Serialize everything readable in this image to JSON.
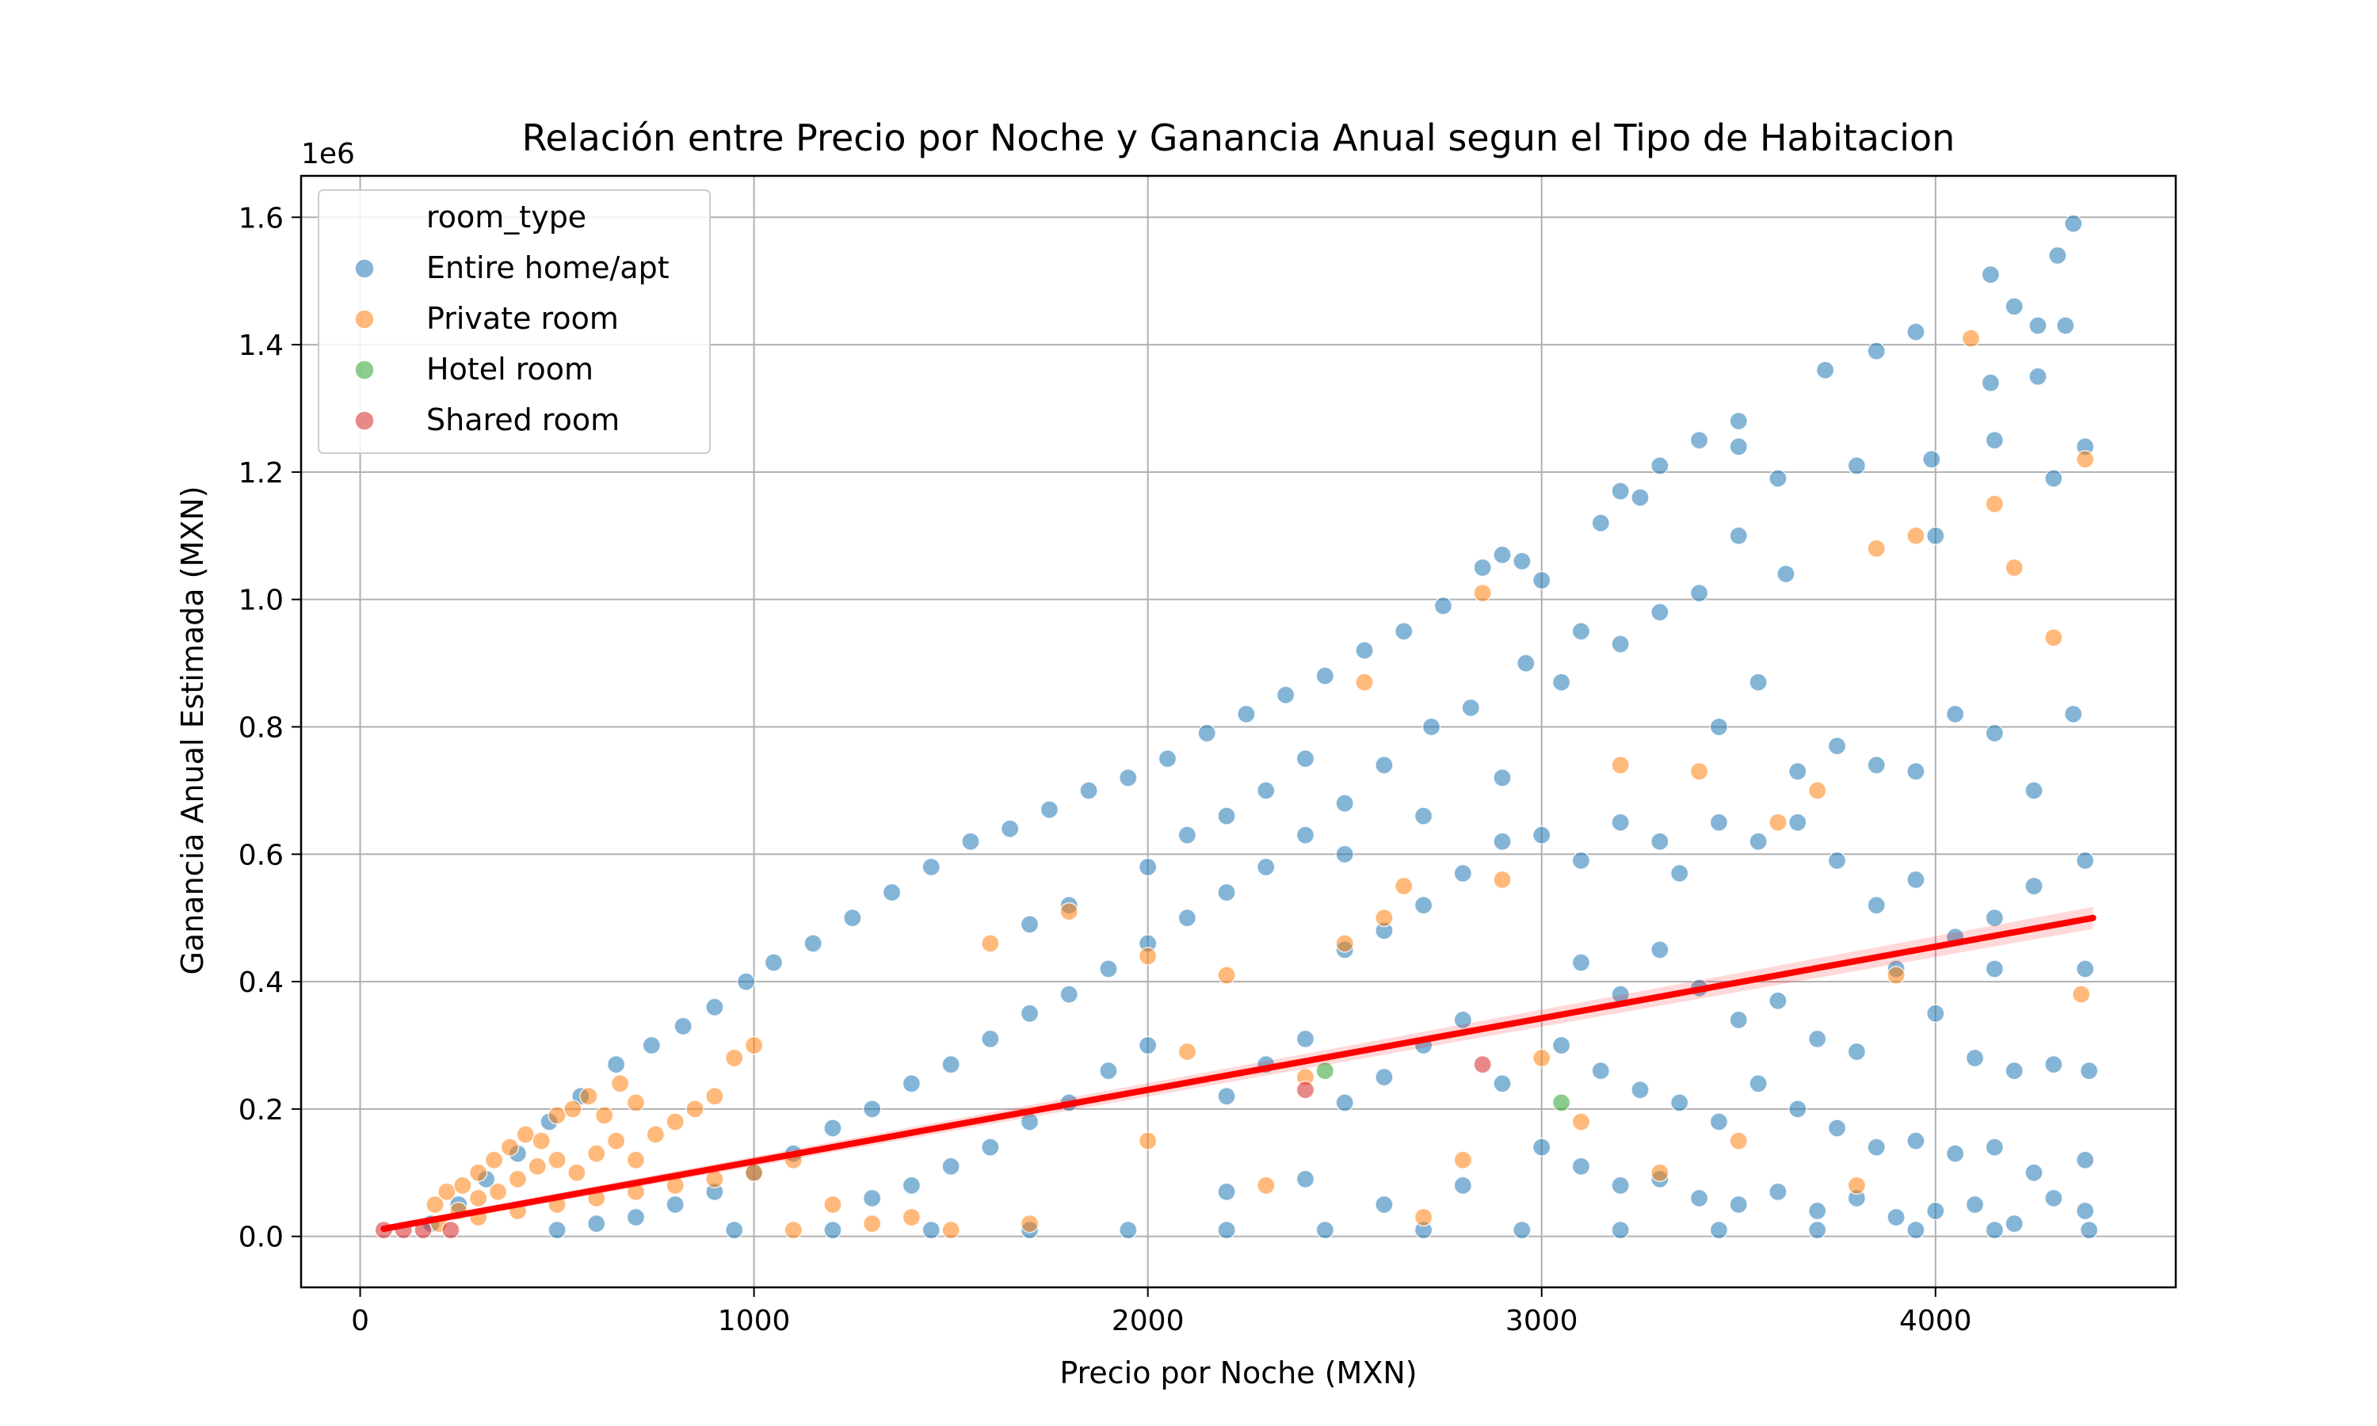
{
  "chart_data": {
    "type": "scatter",
    "title": "Relación entre Precio por Noche y Ganancia Anual segun el Tipo de Habitacion",
    "xlabel": "Precio por Noche (MXN)",
    "ylabel": "Ganancia Anual Estimada (MXN)",
    "y_offset_text": "1e6",
    "xlim": [
      -150,
      4610
    ],
    "ylim": [
      -0.08,
      1.665
    ],
    "x_ticks": [
      0,
      1000,
      2000,
      3000,
      4000
    ],
    "x_tick_labels": [
      "0",
      "1000",
      "2000",
      "3000",
      "4000"
    ],
    "y_ticks": [
      0.0,
      0.2,
      0.4,
      0.6,
      0.8,
      1.0,
      1.2,
      1.4,
      1.6
    ],
    "y_tick_labels": [
      "0.0",
      "0.2",
      "0.4",
      "0.6",
      "0.8",
      "1.0",
      "1.2",
      "1.4",
      "1.6"
    ],
    "grid": true,
    "legend": {
      "title": "room_type",
      "placement": "top-left"
    },
    "series": [
      {
        "name": "Entire home/apt",
        "color": "#1f77b4",
        "points": [
          [
            180,
            0.02
          ],
          [
            250,
            0.05
          ],
          [
            320,
            0.09
          ],
          [
            400,
            0.13
          ],
          [
            480,
            0.18
          ],
          [
            560,
            0.22
          ],
          [
            650,
            0.27
          ],
          [
            740,
            0.3
          ],
          [
            820,
            0.33
          ],
          [
            900,
            0.36
          ],
          [
            980,
            0.4
          ],
          [
            1050,
            0.43
          ],
          [
            1150,
            0.46
          ],
          [
            1250,
            0.5
          ],
          [
            1350,
            0.54
          ],
          [
            1450,
            0.58
          ],
          [
            1550,
            0.62
          ],
          [
            1650,
            0.64
          ],
          [
            1750,
            0.67
          ],
          [
            1850,
            0.7
          ],
          [
            1950,
            0.72
          ],
          [
            2050,
            0.75
          ],
          [
            2150,
            0.79
          ],
          [
            2250,
            0.82
          ],
          [
            2350,
            0.85
          ],
          [
            2450,
            0.88
          ],
          [
            2550,
            0.92
          ],
          [
            2650,
            0.95
          ],
          [
            2750,
            0.99
          ],
          [
            2850,
            1.05
          ],
          [
            2900,
            1.07
          ],
          [
            2950,
            1.06
          ],
          [
            3000,
            1.03
          ],
          [
            3150,
            1.12
          ],
          [
            3200,
            1.17
          ],
          [
            3250,
            1.16
          ],
          [
            3300,
            1.21
          ],
          [
            3400,
            1.25
          ],
          [
            3500,
            1.28
          ],
          [
            3500,
            1.24
          ],
          [
            3600,
            1.19
          ],
          [
            3720,
            1.36
          ],
          [
            3800,
            1.21
          ],
          [
            3850,
            1.39
          ],
          [
            3950,
            1.42
          ],
          [
            3990,
            1.22
          ],
          [
            4140,
            1.51
          ],
          [
            4200,
            1.46
          ],
          [
            4260,
            1.43
          ],
          [
            4310,
            1.54
          ],
          [
            4330,
            1.43
          ],
          [
            4350,
            1.59
          ],
          [
            4140,
            1.34
          ],
          [
            4260,
            1.35
          ],
          [
            4380,
            1.24
          ],
          [
            4150,
            1.25
          ],
          [
            4300,
            1.19
          ],
          [
            4000,
            1.1
          ],
          [
            3500,
            1.1
          ],
          [
            3620,
            1.04
          ],
          [
            3400,
            1.01
          ],
          [
            3300,
            0.98
          ],
          [
            3200,
            0.93
          ],
          [
            3100,
            0.95
          ],
          [
            3050,
            0.87
          ],
          [
            2960,
            0.9
          ],
          [
            2820,
            0.83
          ],
          [
            2720,
            0.8
          ],
          [
            2600,
            0.74
          ],
          [
            2500,
            0.68
          ],
          [
            2400,
            0.63
          ],
          [
            2300,
            0.58
          ],
          [
            2200,
            0.54
          ],
          [
            2100,
            0.5
          ],
          [
            2000,
            0.46
          ],
          [
            1900,
            0.42
          ],
          [
            1800,
            0.38
          ],
          [
            1700,
            0.35
          ],
          [
            1600,
            0.31
          ],
          [
            1500,
            0.27
          ],
          [
            1400,
            0.24
          ],
          [
            1300,
            0.2
          ],
          [
            1200,
            0.17
          ],
          [
            1100,
            0.13
          ],
          [
            1000,
            0.1
          ],
          [
            900,
            0.07
          ],
          [
            800,
            0.05
          ],
          [
            700,
            0.03
          ],
          [
            600,
            0.02
          ],
          [
            500,
            0.01
          ],
          [
            3450,
            0.8
          ],
          [
            3550,
            0.87
          ],
          [
            3650,
            0.73
          ],
          [
            3750,
            0.77
          ],
          [
            3850,
            0.74
          ],
          [
            3950,
            0.73
          ],
          [
            4050,
            0.82
          ],
          [
            4150,
            0.79
          ],
          [
            4250,
            0.7
          ],
          [
            4350,
            0.82
          ],
          [
            3450,
            0.65
          ],
          [
            3550,
            0.62
          ],
          [
            3650,
            0.65
          ],
          [
            3750,
            0.59
          ],
          [
            3850,
            0.52
          ],
          [
            3950,
            0.56
          ],
          [
            4050,
            0.47
          ],
          [
            4150,
            0.5
          ],
          [
            4250,
            0.55
          ],
          [
            4380,
            0.59
          ],
          [
            3100,
            0.59
          ],
          [
            3200,
            0.65
          ],
          [
            3300,
            0.62
          ],
          [
            3350,
            0.57
          ],
          [
            3000,
            0.63
          ],
          [
            2900,
            0.62
          ],
          [
            2800,
            0.57
          ],
          [
            2700,
            0.52
          ],
          [
            2600,
            0.48
          ],
          [
            2500,
            0.45
          ],
          [
            3100,
            0.43
          ],
          [
            3200,
            0.38
          ],
          [
            3300,
            0.45
          ],
          [
            3400,
            0.39
          ],
          [
            3500,
            0.34
          ],
          [
            3600,
            0.37
          ],
          [
            3700,
            0.31
          ],
          [
            3800,
            0.29
          ],
          [
            3900,
            0.42
          ],
          [
            4000,
            0.35
          ],
          [
            4100,
            0.28
          ],
          [
            4200,
            0.26
          ],
          [
            4300,
            0.27
          ],
          [
            4390,
            0.26
          ],
          [
            4380,
            0.42
          ],
          [
            4150,
            0.42
          ],
          [
            3050,
            0.3
          ],
          [
            3150,
            0.26
          ],
          [
            3250,
            0.23
          ],
          [
            3350,
            0.21
          ],
          [
            3450,
            0.18
          ],
          [
            3550,
            0.24
          ],
          [
            3650,
            0.2
          ],
          [
            3750,
            0.17
          ],
          [
            3850,
            0.14
          ],
          [
            3950,
            0.15
          ],
          [
            4050,
            0.13
          ],
          [
            4150,
            0.14
          ],
          [
            4250,
            0.1
          ],
          [
            4380,
            0.12
          ],
          [
            3000,
            0.14
          ],
          [
            3100,
            0.11
          ],
          [
            3200,
            0.08
          ],
          [
            3300,
            0.09
          ],
          [
            3400,
            0.06
          ],
          [
            3500,
            0.05
          ],
          [
            3600,
            0.07
          ],
          [
            3700,
            0.04
          ],
          [
            3800,
            0.06
          ],
          [
            3900,
            0.03
          ],
          [
            4000,
            0.04
          ],
          [
            4100,
            0.05
          ],
          [
            4200,
            0.02
          ],
          [
            4300,
            0.06
          ],
          [
            4380,
            0.04
          ],
          [
            4390,
            0.01
          ],
          [
            4150,
            0.01
          ],
          [
            3950,
            0.01
          ],
          [
            3700,
            0.01
          ],
          [
            3450,
            0.01
          ],
          [
            3200,
            0.01
          ],
          [
            2950,
            0.01
          ],
          [
            2700,
            0.01
          ],
          [
            2450,
            0.01
          ],
          [
            2200,
            0.01
          ],
          [
            1950,
            0.01
          ],
          [
            1700,
            0.01
          ],
          [
            1450,
            0.01
          ],
          [
            1200,
            0.01
          ],
          [
            950,
            0.01
          ],
          [
            2200,
            0.22
          ],
          [
            2300,
            0.27
          ],
          [
            2400,
            0.31
          ],
          [
            2500,
            0.21
          ],
          [
            2600,
            0.25
          ],
          [
            2700,
            0.3
          ],
          [
            2800,
            0.34
          ],
          [
            2900,
            0.24
          ],
          [
            2000,
            0.3
          ],
          [
            1900,
            0.26
          ],
          [
            1800,
            0.21
          ],
          [
            1700,
            0.18
          ],
          [
            1600,
            0.14
          ],
          [
            1500,
            0.11
          ],
          [
            1400,
            0.08
          ],
          [
            1300,
            0.06
          ],
          [
            2200,
            0.07
          ],
          [
            2400,
            0.09
          ],
          [
            2600,
            0.05
          ],
          [
            2800,
            0.08
          ],
          [
            2100,
            0.63
          ],
          [
            2300,
            0.7
          ],
          [
            2400,
            0.75
          ],
          [
            2200,
            0.66
          ],
          [
            2000,
            0.58
          ],
          [
            1800,
            0.52
          ],
          [
            1700,
            0.49
          ],
          [
            2500,
            0.6
          ],
          [
            2700,
            0.66
          ],
          [
            2900,
            0.72
          ]
        ]
      },
      {
        "name": "Private room",
        "color": "#ff7f0e",
        "points": [
          [
            190,
            0.05
          ],
          [
            220,
            0.07
          ],
          [
            260,
            0.08
          ],
          [
            300,
            0.1
          ],
          [
            340,
            0.12
          ],
          [
            380,
            0.14
          ],
          [
            420,
            0.16
          ],
          [
            460,
            0.15
          ],
          [
            500,
            0.19
          ],
          [
            540,
            0.2
          ],
          [
            580,
            0.22
          ],
          [
            620,
            0.19
          ],
          [
            660,
            0.24
          ],
          [
            700,
            0.21
          ],
          [
            250,
            0.04
          ],
          [
            300,
            0.06
          ],
          [
            350,
            0.07
          ],
          [
            400,
            0.09
          ],
          [
            450,
            0.11
          ],
          [
            500,
            0.12
          ],
          [
            550,
            0.1
          ],
          [
            600,
            0.13
          ],
          [
            650,
            0.15
          ],
          [
            700,
            0.12
          ],
          [
            750,
            0.16
          ],
          [
            800,
            0.18
          ],
          [
            850,
            0.2
          ],
          [
            900,
            0.22
          ],
          [
            950,
            0.28
          ],
          [
            1000,
            0.3
          ],
          [
            200,
            0.02
          ],
          [
            300,
            0.03
          ],
          [
            400,
            0.04
          ],
          [
            500,
            0.05
          ],
          [
            600,
            0.06
          ],
          [
            700,
            0.07
          ],
          [
            800,
            0.08
          ],
          [
            900,
            0.09
          ],
          [
            1000,
            0.1
          ],
          [
            1100,
            0.12
          ],
          [
            1200,
            0.05
          ],
          [
            1400,
            0.03
          ],
          [
            1600,
            0.46
          ],
          [
            1800,
            0.51
          ],
          [
            2000,
            0.44
          ],
          [
            2100,
            0.29
          ],
          [
            2200,
            0.41
          ],
          [
            2500,
            0.46
          ],
          [
            2550,
            0.87
          ],
          [
            2600,
            0.5
          ],
          [
            2650,
            0.55
          ],
          [
            2850,
            1.01
          ],
          [
            2900,
            0.56
          ],
          [
            3000,
            0.28
          ],
          [
            3200,
            0.74
          ],
          [
            3400,
            0.73
          ],
          [
            3600,
            0.65
          ],
          [
            3700,
            0.7
          ],
          [
            3850,
            1.08
          ],
          [
            3900,
            0.41
          ],
          [
            3950,
            1.1
          ],
          [
            4090,
            1.41
          ],
          [
            4150,
            1.15
          ],
          [
            4200,
            1.05
          ],
          [
            4300,
            0.94
          ],
          [
            4380,
            1.22
          ],
          [
            4370,
            0.38
          ],
          [
            3800,
            0.08
          ],
          [
            3500,
            0.15
          ],
          [
            3300,
            0.1
          ],
          [
            3100,
            0.18
          ],
          [
            2800,
            0.12
          ],
          [
            2700,
            0.03
          ],
          [
            2400,
            0.25
          ],
          [
            2300,
            0.08
          ],
          [
            2000,
            0.15
          ],
          [
            1700,
            0.02
          ],
          [
            1500,
            0.01
          ],
          [
            1300,
            0.02
          ],
          [
            1100,
            0.01
          ]
        ]
      },
      {
        "name": "Hotel room",
        "color": "#2ca02c",
        "points": [
          [
            3050,
            0.21
          ],
          [
            2450,
            0.26
          ]
        ]
      },
      {
        "name": "Shared room",
        "color": "#d62728",
        "points": [
          [
            60,
            0.01
          ],
          [
            110,
            0.01
          ],
          [
            160,
            0.01
          ],
          [
            230,
            0.01
          ],
          [
            2400,
            0.23
          ],
          [
            2850,
            0.27
          ]
        ]
      }
    ],
    "trendline": {
      "color": "#ff0000",
      "from": [
        60,
        0.012
      ],
      "to": [
        4400,
        0.5
      ]
    }
  }
}
